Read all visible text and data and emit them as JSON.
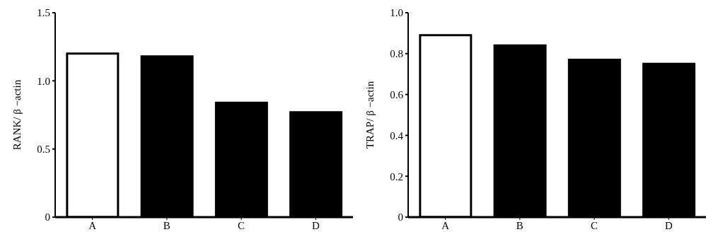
{
  "chart_data": [
    {
      "type": "bar",
      "ylabel": "RANK/ β −actin",
      "categories": [
        "A",
        "B",
        "C",
        "D"
      ],
      "values": [
        1.2,
        1.18,
        0.84,
        0.77
      ],
      "colors": [
        "#ffffff",
        "#000000",
        "#000000",
        "#000000"
      ],
      "ylim": [
        0,
        1.5
      ],
      "yticks": [
        {
          "value": 0,
          "label": "0"
        },
        {
          "value": 0.5,
          "label": "0.5"
        },
        {
          "value": 1,
          "label": "1.0"
        },
        {
          "value": 1.5,
          "label": "1.5"
        }
      ],
      "grid": false
    },
    {
      "type": "bar",
      "ylabel": "TRAP/ β −actin",
      "categories": [
        "A",
        "B",
        "C",
        "D"
      ],
      "values": [
        0.89,
        0.84,
        0.77,
        0.75
      ],
      "colors": [
        "#ffffff",
        "#000000",
        "#000000",
        "#000000"
      ],
      "ylim": [
        0,
        1
      ],
      "yticks": [
        {
          "value": 0,
          "label": "0"
        },
        {
          "value": 0.2,
          "label": "0.2"
        },
        {
          "value": 0.4,
          "label": "0.4"
        },
        {
          "value": 0.6,
          "label": "0.6"
        },
        {
          "value": 0.8,
          "label": "0.8"
        },
        {
          "value": 1,
          "label": "1.0"
        }
      ],
      "grid": false
    }
  ]
}
